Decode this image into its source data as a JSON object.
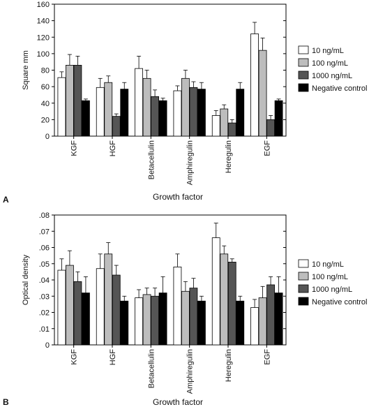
{
  "chart_data": [
    {
      "panel_label": "A",
      "type": "bar",
      "xlabel": "Growth factor",
      "ylabel": "Square mm",
      "ylim": [
        0,
        160
      ],
      "yticks": [
        "0",
        "20",
        "40",
        "60",
        "80",
        "100",
        "120",
        "140",
        "160"
      ],
      "categories": [
        "KGF",
        "HGF",
        "Betacellulin",
        "Amphiregulin",
        "Heregulin",
        "EGF"
      ],
      "series": [
        {
          "name": "10 ng/mL",
          "color": "#ffffff",
          "values": [
            71,
            59,
            82,
            55,
            25,
            124
          ],
          "errors": [
            7,
            11,
            15,
            6,
            6,
            14
          ]
        },
        {
          "name": "100 ng/mL",
          "color": "#bdbdbd",
          "values": [
            86,
            65,
            70,
            70,
            33,
            104
          ],
          "errors": [
            13,
            8,
            10,
            10,
            5,
            15
          ]
        },
        {
          "name": "1000 ng/mL",
          "color": "#555555",
          "values": [
            86,
            24,
            48,
            59,
            16,
            20
          ],
          "errors": [
            11,
            3,
            8,
            7,
            4,
            5
          ]
        },
        {
          "name": "Negative control",
          "color": "#000000",
          "values": [
            43,
            57,
            43,
            57,
            57,
            43
          ],
          "errors": [
            2,
            8,
            3,
            8,
            8,
            2
          ]
        }
      ]
    },
    {
      "panel_label": "B",
      "type": "bar",
      "xlabel": "Growth factor",
      "ylabel": "Optical density",
      "ylim": [
        0,
        0.08
      ],
      "yticks": [
        "0",
        ".01",
        ".02",
        ".03",
        ".04",
        ".05",
        ".06",
        ".07",
        ".08"
      ],
      "categories": [
        "KGF",
        "HGF",
        "Betacellulin",
        "Amphiregulin",
        "Heregulin",
        "EGF"
      ],
      "series": [
        {
          "name": "10 ng/mL",
          "color": "#ffffff",
          "values": [
            0.046,
            0.047,
            0.029,
            0.048,
            0.066,
            0.023
          ],
          "errors": [
            0.007,
            0.009,
            0.005,
            0.008,
            0.009,
            0.005
          ]
        },
        {
          "name": "100 ng/mL",
          "color": "#bdbdbd",
          "values": [
            0.049,
            0.056,
            0.031,
            0.033,
            0.056,
            0.029
          ],
          "errors": [
            0.009,
            0.007,
            0.004,
            0.006,
            0.005,
            0.007
          ]
        },
        {
          "name": "1000 ng/mL",
          "color": "#555555",
          "values": [
            0.039,
            0.043,
            0.03,
            0.035,
            0.051,
            0.037
          ],
          "errors": [
            0.006,
            0.006,
            0.005,
            0.006,
            0.002,
            0.005
          ]
        },
        {
          "name": "Negative control",
          "color": "#000000",
          "values": [
            0.032,
            0.027,
            0.032,
            0.027,
            0.027,
            0.032
          ],
          "errors": [
            0.01,
            0.003,
            0.01,
            0.003,
            0.003,
            0.01
          ]
        }
      ]
    }
  ]
}
